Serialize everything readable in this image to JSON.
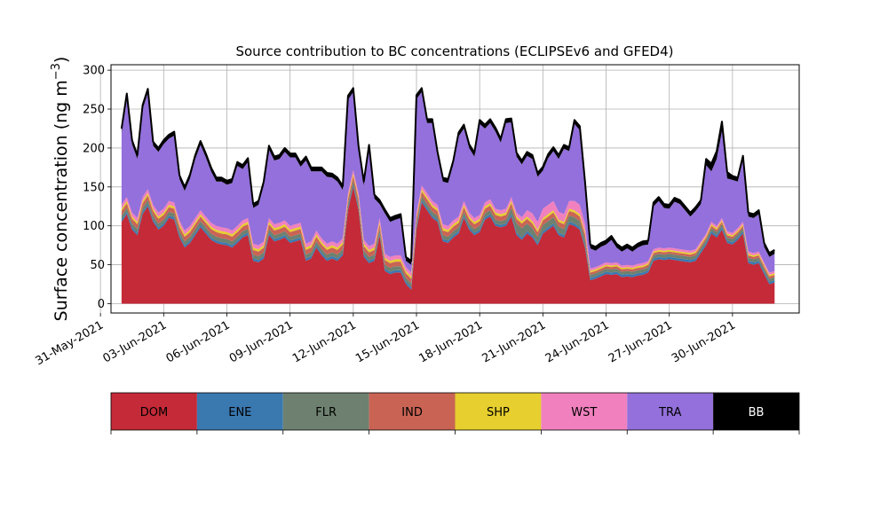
{
  "chart_data": {
    "type": "area",
    "stacked": true,
    "title": "Source contribution to BC concentrations (ECLIPSEv6 and GFED4)",
    "ylabel_main": "Surface concentration (ng m",
    "ylabel_sup": "−3",
    "ylabel_close": ")",
    "xlabel": "",
    "grid": true,
    "x_range": [
      "2021-05-31T12:00",
      "2021-07-03T04:00"
    ],
    "y_range": [
      -12,
      307
    ],
    "y_ticks": [
      0,
      50,
      100,
      150,
      200,
      250,
      300
    ],
    "x_ticks": [
      {
        "date": "2021-05-31",
        "label": "31-May-2021"
      },
      {
        "date": "2021-06-03",
        "label": "03-Jun-2021"
      },
      {
        "date": "2021-06-06",
        "label": "06-Jun-2021"
      },
      {
        "date": "2021-06-09",
        "label": "09-Jun-2021"
      },
      {
        "date": "2021-06-12",
        "label": "12-Jun-2021"
      },
      {
        "date": "2021-06-15",
        "label": "15-Jun-2021"
      },
      {
        "date": "2021-06-18",
        "label": "18-Jun-2021"
      },
      {
        "date": "2021-06-21",
        "label": "21-Jun-2021"
      },
      {
        "date": "2021-06-24",
        "label": "24-Jun-2021"
      },
      {
        "date": "2021-06-27",
        "label": "27-Jun-2021"
      },
      {
        "date": "2021-06-30",
        "label": "30-Jun-2021"
      }
    ],
    "x": [
      "2021-06-01T00:00",
      "2021-06-01T06:00",
      "2021-06-01T12:00",
      "2021-06-01T18:00",
      "2021-06-02T00:00",
      "2021-06-02T06:00",
      "2021-06-02T12:00",
      "2021-06-02T18:00",
      "2021-06-03T00:00",
      "2021-06-03T06:00",
      "2021-06-03T12:00",
      "2021-06-03T18:00",
      "2021-06-04T00:00",
      "2021-06-04T06:00",
      "2021-06-04T12:00",
      "2021-06-04T18:00",
      "2021-06-05T00:00",
      "2021-06-05T06:00",
      "2021-06-05T12:00",
      "2021-06-05T18:00",
      "2021-06-06T00:00",
      "2021-06-06T06:00",
      "2021-06-06T12:00",
      "2021-06-06T18:00",
      "2021-06-07T00:00",
      "2021-06-07T06:00",
      "2021-06-07T12:00",
      "2021-06-07T18:00",
      "2021-06-08T00:00",
      "2021-06-08T06:00",
      "2021-06-08T12:00",
      "2021-06-08T18:00",
      "2021-06-09T00:00",
      "2021-06-09T06:00",
      "2021-06-09T12:00",
      "2021-06-09T18:00",
      "2021-06-10T00:00",
      "2021-06-10T06:00",
      "2021-06-10T12:00",
      "2021-06-10T18:00",
      "2021-06-11T00:00",
      "2021-06-11T06:00",
      "2021-06-11T12:00",
      "2021-06-11T18:00",
      "2021-06-12T00:00",
      "2021-06-12T06:00",
      "2021-06-12T12:00",
      "2021-06-12T18:00",
      "2021-06-13T00:00",
      "2021-06-13T06:00",
      "2021-06-13T12:00",
      "2021-06-13T18:00",
      "2021-06-14T00:00",
      "2021-06-14T06:00",
      "2021-06-14T12:00",
      "2021-06-14T18:00",
      "2021-06-15T00:00",
      "2021-06-15T06:00",
      "2021-06-15T12:00",
      "2021-06-15T18:00",
      "2021-06-16T00:00",
      "2021-06-16T06:00",
      "2021-06-16T12:00",
      "2021-06-16T18:00",
      "2021-06-17T00:00",
      "2021-06-17T06:00",
      "2021-06-17T12:00",
      "2021-06-17T18:00",
      "2021-06-18T00:00",
      "2021-06-18T06:00",
      "2021-06-18T12:00",
      "2021-06-18T18:00",
      "2021-06-19T00:00",
      "2021-06-19T06:00",
      "2021-06-19T12:00",
      "2021-06-19T18:00",
      "2021-06-20T00:00",
      "2021-06-20T06:00",
      "2021-06-20T12:00",
      "2021-06-20T18:00",
      "2021-06-21T00:00",
      "2021-06-21T06:00",
      "2021-06-21T12:00",
      "2021-06-21T18:00",
      "2021-06-22T00:00",
      "2021-06-22T06:00",
      "2021-06-22T12:00",
      "2021-06-22T18:00",
      "2021-06-23T00:00",
      "2021-06-23T06:00",
      "2021-06-23T12:00",
      "2021-06-23T18:00",
      "2021-06-24T00:00",
      "2021-06-24T06:00",
      "2021-06-24T12:00",
      "2021-06-24T18:00",
      "2021-06-25T00:00",
      "2021-06-25T06:00",
      "2021-06-25T12:00",
      "2021-06-25T18:00",
      "2021-06-26T00:00",
      "2021-06-26T06:00",
      "2021-06-26T12:00",
      "2021-06-26T18:00",
      "2021-06-27T00:00",
      "2021-06-27T06:00",
      "2021-06-27T12:00",
      "2021-06-27T18:00",
      "2021-06-28T00:00",
      "2021-06-28T06:00",
      "2021-06-28T12:00",
      "2021-06-28T18:00",
      "2021-06-29T00:00",
      "2021-06-29T06:00",
      "2021-06-29T12:00",
      "2021-06-29T18:00",
      "2021-06-30T00:00",
      "2021-06-30T06:00",
      "2021-06-30T12:00",
      "2021-06-30T18:00",
      "2021-07-01T00:00",
      "2021-07-01T06:00",
      "2021-07-01T12:00",
      "2021-07-01T18:00",
      "2021-07-02T00:00"
    ],
    "series": [
      {
        "name": "DOM",
        "color": "#c42a37",
        "values": [
          105,
          115,
          95,
          88,
          115,
          125,
          105,
          95,
          100,
          110,
          108,
          85,
          72,
          78,
          88,
          98,
          90,
          82,
          78,
          76,
          75,
          72,
          78,
          85,
          88,
          55,
          53,
          58,
          88,
          80,
          82,
          85,
          78,
          80,
          82,
          55,
          58,
          72,
          62,
          55,
          58,
          55,
          62,
          120,
          150,
          120,
          60,
          52,
          55,
          88,
          42,
          38,
          40,
          40,
          25,
          18,
          95,
          130,
          120,
          110,
          105,
          80,
          78,
          85,
          90,
          110,
          95,
          88,
          92,
          108,
          112,
          100,
          98,
          100,
          112,
          88,
          82,
          90,
          85,
          75,
          90,
          95,
          100,
          88,
          85,
          102,
          100,
          95,
          72,
          30,
          32,
          35,
          38,
          37,
          38,
          34,
          35,
          34,
          36,
          37,
          40,
          55,
          57,
          56,
          57,
          56,
          55,
          54,
          53,
          55,
          65,
          75,
          90,
          85,
          95,
          78,
          76,
          82,
          90,
          52,
          50,
          52,
          38,
          25,
          27
        ]
      },
      {
        "name": "ENE",
        "color": "#3a78b0",
        "values": [
          3,
          3,
          3,
          3,
          3,
          3,
          3,
          3,
          3,
          3,
          3,
          3,
          3,
          3,
          3,
          3,
          3,
          3,
          3,
          3,
          3,
          3,
          3,
          3,
          3,
          3,
          3,
          3,
          3,
          3,
          3,
          3,
          3,
          3,
          3,
          3,
          3,
          3,
          3,
          3,
          3,
          3,
          3,
          3,
          3,
          3,
          3,
          3,
          3,
          3,
          3,
          3,
          3,
          3,
          3,
          3,
          3,
          3,
          3,
          3,
          3,
          3,
          3,
          3,
          3,
          3,
          3,
          3,
          3,
          3,
          3,
          3,
          3,
          3,
          3,
          3,
          3,
          3,
          3,
          3,
          3,
          3,
          3,
          3,
          3,
          3,
          3,
          3,
          3,
          3,
          3,
          3,
          3,
          3,
          3,
          3,
          3,
          3,
          3,
          3,
          3,
          3,
          3,
          3,
          3,
          3,
          3,
          3,
          3,
          3,
          3,
          3,
          3,
          3,
          3,
          3,
          3,
          3,
          3,
          3,
          3,
          3,
          3,
          3,
          3
        ]
      },
      {
        "name": "FLR",
        "color": "#6e8170",
        "values": [
          5,
          5,
          5,
          5,
          5,
          5,
          5,
          5,
          5,
          5,
          5,
          5,
          5,
          5,
          5,
          5,
          5,
          5,
          5,
          5,
          5,
          5,
          5,
          5,
          5,
          5,
          5,
          5,
          5,
          5,
          5,
          5,
          5,
          5,
          5,
          5,
          5,
          5,
          5,
          5,
          5,
          5,
          5,
          5,
          5,
          5,
          5,
          5,
          5,
          5,
          5,
          5,
          5,
          5,
          5,
          5,
          5,
          5,
          5,
          5,
          5,
          5,
          5,
          5,
          5,
          5,
          5,
          5,
          5,
          5,
          5,
          5,
          5,
          5,
          8,
          12,
          12,
          10,
          9,
          8,
          8,
          8,
          8,
          8,
          8,
          8,
          8,
          8,
          8,
          4,
          4,
          4,
          4,
          4,
          4,
          4,
          4,
          4,
          4,
          4,
          4,
          4,
          4,
          4,
          4,
          4,
          4,
          4,
          4,
          4,
          4,
          4,
          4,
          4,
          4,
          4,
          4,
          4,
          4,
          4,
          4,
          4,
          4,
          4,
          4
        ]
      },
      {
        "name": "IND",
        "color": "#c96455",
        "values": [
          6,
          6,
          6,
          6,
          6,
          6,
          6,
          6,
          6,
          6,
          6,
          6,
          6,
          6,
          6,
          6,
          6,
          6,
          6,
          6,
          6,
          6,
          6,
          6,
          6,
          6,
          6,
          6,
          6,
          6,
          6,
          6,
          6,
          6,
          6,
          6,
          6,
          6,
          6,
          6,
          6,
          6,
          6,
          6,
          6,
          6,
          6,
          6,
          6,
          6,
          6,
          6,
          6,
          6,
          6,
          6,
          6,
          6,
          6,
          6,
          6,
          6,
          6,
          6,
          6,
          6,
          6,
          6,
          6,
          6,
          6,
          6,
          6,
          6,
          6,
          6,
          6,
          6,
          6,
          6,
          6,
          6,
          6,
          6,
          6,
          6,
          6,
          6,
          6,
          3,
          3,
          3,
          3,
          3,
          3,
          3,
          3,
          3,
          3,
          3,
          3,
          3,
          3,
          3,
          3,
          3,
          3,
          3,
          3,
          3,
          3,
          3,
          3,
          3,
          3,
          3,
          3,
          3,
          3,
          3,
          3,
          3,
          3,
          3,
          3
        ]
      },
      {
        "name": "SHP",
        "color": "#e6cf2e",
        "values": [
          3,
          3,
          3,
          3,
          3,
          3,
          3,
          3,
          3,
          3,
          3,
          3,
          3,
          3,
          3,
          3,
          3,
          3,
          3,
          3,
          3,
          3,
          3,
          3,
          3,
          3,
          3,
          3,
          3,
          3,
          3,
          3,
          3,
          3,
          3,
          3,
          3,
          3,
          3,
          3,
          3,
          3,
          3,
          3,
          3,
          3,
          3,
          3,
          3,
          3,
          3,
          3,
          3,
          3,
          3,
          3,
          3,
          3,
          3,
          3,
          3,
          3,
          3,
          3,
          3,
          3,
          3,
          3,
          3,
          3,
          3,
          3,
          3,
          3,
          3,
          3,
          3,
          3,
          3,
          3,
          3,
          3,
          3,
          3,
          3,
          3,
          3,
          3,
          3,
          2,
          2,
          2,
          2,
          2,
          2,
          2,
          2,
          2,
          2,
          2,
          2,
          2,
          2,
          2,
          2,
          2,
          2,
          2,
          2,
          2,
          2,
          2,
          2,
          2,
          2,
          2,
          2,
          2,
          2,
          2,
          2,
          2,
          2,
          2,
          2
        ]
      },
      {
        "name": "WST",
        "color": "#f081be",
        "values": [
          5,
          5,
          5,
          5,
          5,
          5,
          5,
          5,
          5,
          5,
          5,
          5,
          5,
          5,
          5,
          5,
          5,
          5,
          5,
          5,
          5,
          5,
          5,
          5,
          5,
          5,
          5,
          5,
          5,
          5,
          5,
          5,
          5,
          5,
          5,
          5,
          5,
          5,
          5,
          5,
          5,
          5,
          5,
          5,
          5,
          5,
          5,
          5,
          5,
          5,
          5,
          5,
          5,
          5,
          5,
          5,
          5,
          5,
          5,
          5,
          5,
          5,
          5,
          5,
          5,
          5,
          5,
          5,
          5,
          5,
          5,
          5,
          5,
          5,
          5,
          5,
          5,
          8,
          10,
          10,
          12,
          12,
          12,
          10,
          10,
          10,
          12,
          12,
          10,
          3,
          3,
          3,
          3,
          3,
          3,
          3,
          3,
          3,
          3,
          3,
          3,
          3,
          3,
          3,
          3,
          3,
          3,
          3,
          3,
          3,
          3,
          3,
          3,
          3,
          3,
          3,
          3,
          3,
          3,
          3,
          3,
          3,
          3,
          3,
          3
        ]
      },
      {
        "name": "TRA",
        "color": "#9370db",
        "values": [
          93,
          128,
          88,
          76,
          113,
          124,
          76,
          78,
          83,
          80,
          86,
          53,
          51,
          61,
          76,
          84,
          76,
          66,
          57,
          59,
          56,
          61,
          77,
          66,
          72,
          46,
          52,
          72,
          88,
          82,
          82,
          88,
          88,
          86,
          72,
          107,
          90,
          76,
          86,
          86,
          82,
          80,
          62,
          120,
          100,
          55,
          70,
          125,
          58,
          18,
          52,
          45,
          46,
          48,
          8,
          10,
          146,
          120,
          90,
          100,
          63,
          55,
          55,
          72,
          103,
          93,
          83,
          79,
          117,
          95,
          98,
          99,
          87,
          110,
          96,
          72,
          68,
          70,
          70,
          58,
          49,
          60,
          64,
          68,
          84,
          64,
          99,
          96,
          50,
          26,
          21,
          23,
          23,
          30,
          19,
          18,
          21,
          18,
          21,
          23,
          21,
          55,
          60,
          52,
          50,
          60,
          58,
          51,
          44,
          49,
          48,
          88,
          65,
          86,
          112,
          68,
          68,
          60,
          80,
          45,
          45,
          48,
          20,
          20,
          22
        ]
      },
      {
        "name": "BB",
        "color": "#000000",
        "values": [
          5,
          5,
          5,
          5,
          5,
          5,
          5,
          5,
          5,
          5,
          5,
          5,
          5,
          5,
          5,
          5,
          5,
          5,
          5,
          5,
          5,
          5,
          5,
          5,
          5,
          5,
          5,
          5,
          5,
          5,
          5,
          5,
          5,
          5,
          5,
          5,
          5,
          5,
          5,
          5,
          5,
          5,
          5,
          5,
          5,
          5,
          5,
          5,
          5,
          5,
          5,
          5,
          5,
          5,
          5,
          5,
          5,
          5,
          5,
          5,
          5,
          5,
          5,
          5,
          5,
          5,
          5,
          5,
          5,
          5,
          5,
          5,
          5,
          5,
          5,
          5,
          5,
          5,
          5,
          5,
          5,
          5,
          5,
          5,
          5,
          5,
          5,
          5,
          5,
          5,
          5,
          5,
          5,
          5,
          5,
          5,
          5,
          5,
          5,
          5,
          5,
          5,
          5,
          5,
          5,
          5,
          5,
          5,
          5,
          5,
          5,
          8,
          10,
          10,
          12,
          8,
          5,
          5,
          5,
          5,
          5,
          5,
          5,
          5,
          5
        ]
      }
    ],
    "legend": [
      {
        "name": "DOM",
        "color": "#c42a37",
        "text_color": "#000000"
      },
      {
        "name": "ENE",
        "color": "#3a78b0",
        "text_color": "#000000"
      },
      {
        "name": "FLR",
        "color": "#6e8170",
        "text_color": "#000000"
      },
      {
        "name": "IND",
        "color": "#c96455",
        "text_color": "#000000"
      },
      {
        "name": "SHP",
        "color": "#e6cf2e",
        "text_color": "#000000"
      },
      {
        "name": "WST",
        "color": "#f081be",
        "text_color": "#000000"
      },
      {
        "name": "TRA",
        "color": "#9370db",
        "text_color": "#000000"
      },
      {
        "name": "BB",
        "color": "#000000",
        "text_color": "#ffffff"
      }
    ],
    "legend_placement": "bottom"
  }
}
